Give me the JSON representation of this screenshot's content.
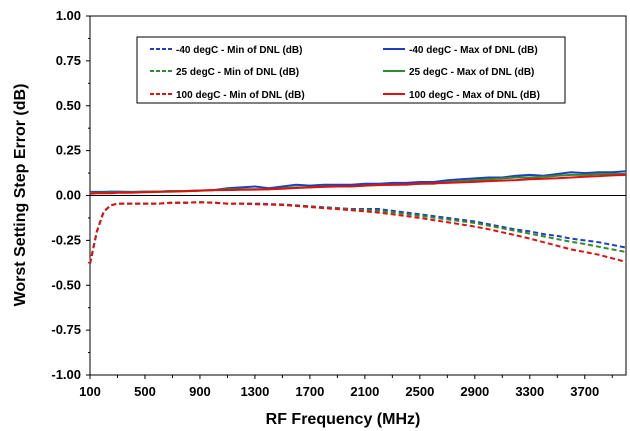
{
  "chart_data": {
    "type": "line",
    "xlabel": "RF Frequency (MHz)",
    "ylabel": "Worst Setting Step Error (dB)",
    "xlim": [
      100,
      4000
    ],
    "ylim": [
      -1.0,
      1.0
    ],
    "x_ticks": [
      100,
      500,
      900,
      1300,
      1700,
      2100,
      2500,
      2900,
      3300,
      3700
    ],
    "x_tick_labels": [
      "100",
      "500",
      "900",
      "1300",
      "1700",
      "2100",
      "2500",
      "2900",
      "3300",
      "3700"
    ],
    "y_ticks": [
      -1.0,
      -0.75,
      -0.5,
      -0.25,
      0.0,
      0.25,
      0.5,
      0.75,
      1.0
    ],
    "y_tick_labels": [
      "-1.00",
      "-0.75",
      "-0.50",
      "-0.25",
      "0.00",
      "0.25",
      "0.50",
      "0.75",
      "1.00"
    ],
    "grid": false,
    "legend_position": "top",
    "x": [
      100,
      150,
      200,
      250,
      300,
      400,
      500,
      600,
      700,
      800,
      900,
      1000,
      1100,
      1200,
      1300,
      1400,
      1500,
      1600,
      1700,
      1800,
      1900,
      2000,
      2100,
      2200,
      2300,
      2400,
      2500,
      2600,
      2700,
      2800,
      2900,
      3000,
      3100,
      3200,
      3300,
      3400,
      3500,
      3600,
      3700,
      3800,
      3900,
      4000
    ],
    "series": [
      {
        "name": "-40 degC - Min of DNL (dB)",
        "color": "#1f3fbf",
        "dash": true,
        "values": [
          -0.38,
          -0.2,
          -0.09,
          -0.055,
          -0.045,
          -0.045,
          -0.045,
          -0.045,
          -0.04,
          -0.04,
          -0.038,
          -0.04,
          -0.045,
          -0.045,
          -0.045,
          -0.048,
          -0.05,
          -0.055,
          -0.06,
          -0.065,
          -0.07,
          -0.075,
          -0.075,
          -0.075,
          -0.085,
          -0.095,
          -0.105,
          -0.115,
          -0.125,
          -0.135,
          -0.145,
          -0.16,
          -0.175,
          -0.19,
          -0.2,
          -0.215,
          -0.225,
          -0.24,
          -0.25,
          -0.26,
          -0.275,
          -0.29
        ]
      },
      {
        "name": "-40 degC - Max of DNL (dB)",
        "color": "#1f3fbf",
        "dash": false,
        "values": [
          0.02,
          0.02,
          0.02,
          0.022,
          0.022,
          0.02,
          0.022,
          0.022,
          0.025,
          0.025,
          0.028,
          0.03,
          0.04,
          0.045,
          0.05,
          0.04,
          0.05,
          0.06,
          0.055,
          0.06,
          0.06,
          0.06,
          0.065,
          0.065,
          0.07,
          0.07,
          0.075,
          0.075,
          0.085,
          0.09,
          0.095,
          0.1,
          0.1,
          0.11,
          0.115,
          0.11,
          0.12,
          0.13,
          0.125,
          0.13,
          0.13,
          0.135
        ]
      },
      {
        "name": "25 degC - Min of DNL (dB)",
        "color": "#2e8b2e",
        "dash": true,
        "values": [
          -0.38,
          -0.2,
          -0.09,
          -0.055,
          -0.045,
          -0.045,
          -0.045,
          -0.045,
          -0.04,
          -0.04,
          -0.038,
          -0.04,
          -0.045,
          -0.045,
          -0.048,
          -0.05,
          -0.052,
          -0.057,
          -0.062,
          -0.068,
          -0.073,
          -0.078,
          -0.08,
          -0.085,
          -0.093,
          -0.103,
          -0.113,
          -0.123,
          -0.133,
          -0.143,
          -0.153,
          -0.168,
          -0.183,
          -0.198,
          -0.213,
          -0.228,
          -0.243,
          -0.258,
          -0.27,
          -0.285,
          -0.3,
          -0.315
        ]
      },
      {
        "name": "25 degC - Max of DNL (dB)",
        "color": "#2e8b2e",
        "dash": false,
        "values": [
          0.015,
          0.015,
          0.016,
          0.017,
          0.018,
          0.018,
          0.02,
          0.022,
          0.025,
          0.025,
          0.028,
          0.03,
          0.035,
          0.035,
          0.035,
          0.035,
          0.04,
          0.045,
          0.045,
          0.05,
          0.05,
          0.05,
          0.055,
          0.06,
          0.06,
          0.06,
          0.065,
          0.065,
          0.075,
          0.08,
          0.085,
          0.09,
          0.095,
          0.1,
          0.1,
          0.105,
          0.11,
          0.115,
          0.115,
          0.12,
          0.12,
          0.12
        ]
      },
      {
        "name": "100 degC - Min of DNL (dB)",
        "color": "#e01010",
        "dash": true,
        "values": [
          -0.38,
          -0.2,
          -0.09,
          -0.055,
          -0.045,
          -0.045,
          -0.045,
          -0.045,
          -0.04,
          -0.04,
          -0.038,
          -0.04,
          -0.045,
          -0.045,
          -0.048,
          -0.05,
          -0.053,
          -0.058,
          -0.064,
          -0.07,
          -0.076,
          -0.082,
          -0.088,
          -0.095,
          -0.105,
          -0.115,
          -0.125,
          -0.137,
          -0.149,
          -0.161,
          -0.173,
          -0.188,
          -0.205,
          -0.222,
          -0.24,
          -0.26,
          -0.28,
          -0.3,
          -0.315,
          -0.33,
          -0.35,
          -0.37
        ]
      },
      {
        "name": "100 degC - Max of DNL (dB)",
        "color": "#e01010",
        "dash": false,
        "values": [
          0.01,
          0.012,
          0.012,
          0.013,
          0.015,
          0.015,
          0.018,
          0.02,
          0.022,
          0.024,
          0.027,
          0.03,
          0.03,
          0.032,
          0.033,
          0.035,
          0.038,
          0.042,
          0.045,
          0.048,
          0.05,
          0.052,
          0.055,
          0.058,
          0.06,
          0.062,
          0.065,
          0.068,
          0.07,
          0.073,
          0.076,
          0.08,
          0.083,
          0.086,
          0.09,
          0.093,
          0.096,
          0.1,
          0.104,
          0.108,
          0.112,
          0.115
        ]
      }
    ]
  }
}
